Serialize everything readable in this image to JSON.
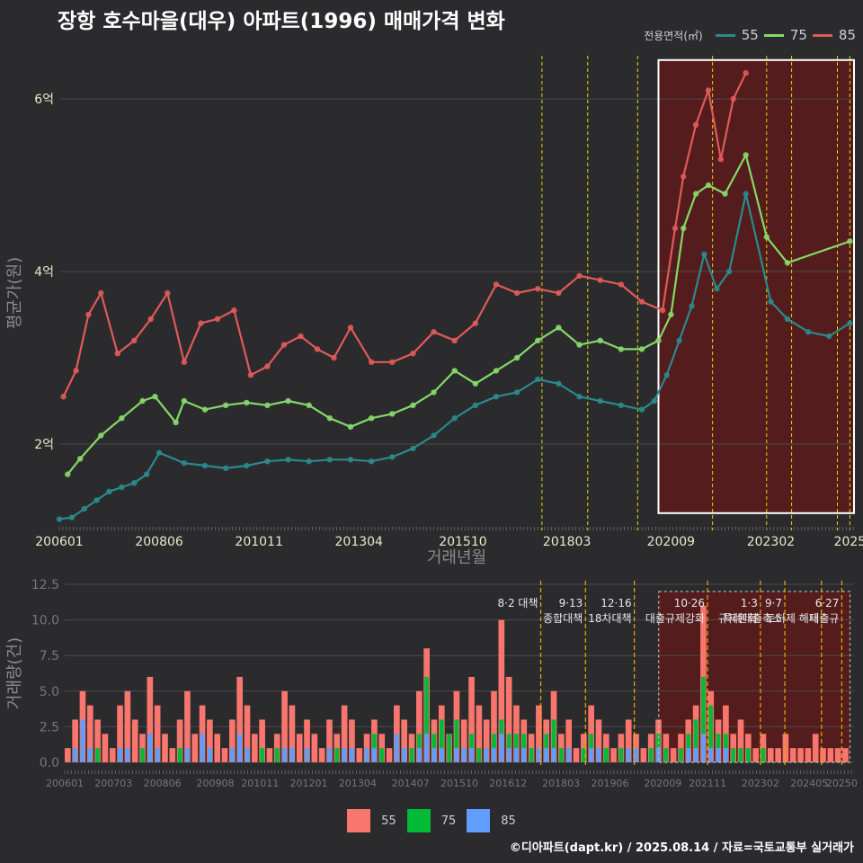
{
  "colors": {
    "background": "#2b2b2d",
    "grid": "#4a4a4c",
    "tick_text": "#e8e8c8",
    "axis_label": "#8c8c8c",
    "s55": "#2a8a8e",
    "s75": "#86d86a",
    "s85": "#e05a5a",
    "bar55": "#f8766d",
    "bar75": "#00ba38",
    "bar85": "#619cff",
    "highlight_fill": "#5c1a1a",
    "policy_line": "#e8d500",
    "policy_line_bottom": "#f0a800"
  },
  "chart_data": [
    {
      "type": "line",
      "title": "장항 호수마을(대우) 아파트(1996) 매매가격 변화",
      "xlabel": "거래년월",
      "ylabel": "평균가(원)",
      "xlim": [
        2006.0,
        2025.1
      ],
      "ylim": [
        1.0,
        6.5
      ],
      "y_ticks": [
        2,
        4,
        6
      ],
      "y_tick_labels": [
        "2억",
        "4억",
        "6억"
      ],
      "x_ticks": [
        2006.0,
        2008.4,
        2010.8,
        2013.2,
        2015.7,
        2018.2,
        2020.7,
        2023.1,
        2025.0
      ],
      "x_tick_labels": [
        "200601",
        "200806",
        "201011",
        "201304",
        "201510",
        "201803",
        "202009",
        "202302",
        "2025"
      ],
      "legend_title": "전용면적(㎡)",
      "highlight_range": {
        "x0": 2020.4,
        "x1": 2025.1,
        "y0": 1.2,
        "y1": 6.45
      },
      "policy_lines": [
        2017.6,
        2018.7,
        2019.9,
        2021.7,
        2023.0,
        2023.6,
        2024.7,
        2025.0
      ],
      "series": [
        {
          "name": "55",
          "x": [
            2006.0,
            2006.3,
            2006.6,
            2006.9,
            2007.2,
            2007.5,
            2007.8,
            2008.1,
            2008.4,
            2009.0,
            2009.5,
            2010.0,
            2010.5,
            2011.0,
            2011.5,
            2012.0,
            2012.5,
            2013.0,
            2013.5,
            2014.0,
            2014.5,
            2015.0,
            2015.5,
            2016.0,
            2016.5,
            2017.0,
            2017.5,
            2018.0,
            2018.5,
            2019.0,
            2019.5,
            2020.0,
            2020.3,
            2020.6,
            2020.9,
            2021.2,
            2021.5,
            2021.8,
            2022.1,
            2022.5,
            2023.1,
            2023.5,
            2024.0,
            2024.5,
            2025.0
          ],
          "values": [
            1.13,
            1.15,
            1.25,
            1.35,
            1.45,
            1.5,
            1.55,
            1.65,
            1.9,
            1.78,
            1.75,
            1.72,
            1.75,
            1.8,
            1.82,
            1.8,
            1.82,
            1.82,
            1.8,
            1.85,
            1.95,
            2.1,
            2.3,
            2.45,
            2.55,
            2.6,
            2.75,
            2.7,
            2.55,
            2.5,
            2.45,
            2.4,
            2.5,
            2.8,
            3.2,
            3.6,
            4.2,
            3.8,
            4.0,
            4.9,
            3.65,
            3.45,
            3.3,
            3.25,
            3.4
          ]
        },
        {
          "name": "75",
          "x": [
            2006.2,
            2006.5,
            2007.0,
            2007.5,
            2008.0,
            2008.3,
            2008.8,
            2009.0,
            2009.5,
            2010.0,
            2010.5,
            2011.0,
            2011.5,
            2012.0,
            2012.5,
            2013.0,
            2013.5,
            2014.0,
            2014.5,
            2015.0,
            2015.5,
            2016.0,
            2016.5,
            2017.0,
            2017.5,
            2018.0,
            2018.5,
            2019.0,
            2019.5,
            2020.0,
            2020.4,
            2020.7,
            2021.0,
            2021.3,
            2021.6,
            2022.0,
            2022.5,
            2023.0,
            2023.5,
            2025.0
          ],
          "values": [
            1.65,
            1.83,
            2.1,
            2.3,
            2.5,
            2.55,
            2.25,
            2.5,
            2.4,
            2.45,
            2.48,
            2.45,
            2.5,
            2.45,
            2.3,
            2.2,
            2.3,
            2.35,
            2.45,
            2.6,
            2.85,
            2.7,
            2.85,
            3.0,
            3.2,
            3.35,
            3.15,
            3.2,
            3.1,
            3.1,
            3.2,
            3.5,
            4.5,
            4.9,
            5.0,
            4.9,
            5.35,
            4.4,
            4.1,
            4.35
          ]
        },
        {
          "name": "85",
          "x": [
            2006.1,
            2006.4,
            2006.7,
            2007.0,
            2007.4,
            2007.8,
            2008.2,
            2008.6,
            2009.0,
            2009.4,
            2009.8,
            2010.2,
            2010.6,
            2011.0,
            2011.4,
            2011.8,
            2012.2,
            2012.6,
            2013.0,
            2013.5,
            2014.0,
            2014.5,
            2015.0,
            2015.5,
            2016.0,
            2016.5,
            2017.0,
            2017.5,
            2018.0,
            2018.5,
            2019.0,
            2019.5,
            2020.0,
            2020.5,
            2020.8,
            2021.0,
            2021.3,
            2021.6,
            2021.9,
            2022.2,
            2022.5
          ],
          "values": [
            2.55,
            2.85,
            3.5,
            3.75,
            3.05,
            3.2,
            3.45,
            3.75,
            2.95,
            3.4,
            3.45,
            3.55,
            2.8,
            2.9,
            3.15,
            3.25,
            3.1,
            3.0,
            3.35,
            2.95,
            2.95,
            3.05,
            3.3,
            3.2,
            3.4,
            3.85,
            3.75,
            3.8,
            3.75,
            3.95,
            3.9,
            3.85,
            3.65,
            3.55,
            4.5,
            5.1,
            5.7,
            6.1,
            5.3,
            6.0,
            6.3
          ]
        }
      ]
    },
    {
      "type": "bar",
      "xlabel": "",
      "ylabel": "거래량(건)",
      "ylim": [
        0,
        12.5
      ],
      "y_ticks": [
        0,
        2.5,
        5,
        7.5,
        10,
        12.5
      ],
      "y_tick_labels": [
        "0.0",
        "2.5",
        "5.0",
        "7.5",
        "10.0",
        "12.5"
      ],
      "x_ticks": [
        2006.0,
        2007.2,
        2008.4,
        2009.7,
        2010.8,
        2012.0,
        2013.2,
        2014.5,
        2015.7,
        2016.9,
        2018.2,
        2019.4,
        2020.7,
        2021.8,
        2023.1,
        2024.3,
        2025.1
      ],
      "x_tick_labels": [
        "200601",
        "200703",
        "200806",
        "200908",
        "201011",
        "201201",
        "201304",
        "201407",
        "201510",
        "201612",
        "201803",
        "201906",
        "202009",
        "202111",
        "202302",
        "202405",
        "20250"
      ],
      "annotations": [
        {
          "x": 2017.6,
          "line1": "8·2 대책",
          "line2": ""
        },
        {
          "x": 2018.7,
          "line1": "9·13",
          "line2": "종합대책"
        },
        {
          "x": 2019.9,
          "line1": "12·16",
          "line2": "18차대책"
        },
        {
          "x": 2021.7,
          "line1": "10·26",
          "line2": "대출규제강화"
        },
        {
          "x": 2023.0,
          "line1": "1·3",
          "line2": "규제완화"
        },
        {
          "x": 2023.6,
          "line1": "9·7",
          "line2": "특례대출축소"
        },
        {
          "x": 2024.5,
          "line1": "",
          "line2": "토허제 해제"
        },
        {
          "x": 2025.0,
          "line1": "6·27",
          "line2": "대출규"
        }
      ],
      "legend": [
        "55",
        "75",
        "85"
      ],
      "series": [
        {
          "name": "55",
          "values": [
            1,
            3,
            5,
            4,
            3,
            2,
            1,
            4,
            5,
            3,
            2,
            6,
            4,
            2,
            1,
            3,
            5,
            2,
            4,
            3,
            2,
            1,
            3,
            6,
            4,
            2,
            3,
            1,
            2,
            5,
            4,
            2,
            3,
            2,
            1,
            3,
            2,
            4,
            3,
            1,
            2,
            3,
            2,
            1,
            4,
            3,
            2,
            5,
            8,
            3,
            4,
            2,
            5,
            3,
            6,
            4,
            3,
            5,
            10,
            6,
            4,
            3,
            2,
            4,
            3,
            5,
            2,
            3,
            1,
            2,
            4,
            3,
            2,
            1,
            2,
            3,
            2,
            1,
            2,
            3,
            2,
            1,
            2,
            3,
            4,
            11,
            5,
            3,
            4,
            2,
            3,
            2,
            1,
            2,
            1,
            1,
            2,
            1,
            1,
            1,
            2,
            1,
            1,
            1,
            1
          ]
        },
        {
          "name": "75",
          "values": [
            0,
            1,
            1,
            0,
            1,
            0,
            0,
            1,
            1,
            0,
            1,
            2,
            1,
            0,
            0,
            1,
            1,
            0,
            1,
            1,
            0,
            0,
            1,
            1,
            1,
            0,
            1,
            0,
            1,
            1,
            1,
            0,
            1,
            0,
            0,
            1,
            1,
            1,
            1,
            0,
            1,
            2,
            1,
            0,
            2,
            1,
            1,
            2,
            6,
            2,
            3,
            2,
            3,
            1,
            2,
            1,
            1,
            2,
            3,
            2,
            2,
            2,
            1,
            1,
            2,
            3,
            1,
            1,
            0,
            1,
            2,
            1,
            1,
            0,
            1,
            1,
            1,
            0,
            1,
            2,
            1,
            0,
            1,
            2,
            3,
            6,
            4,
            2,
            2,
            1,
            1,
            1,
            0,
            1,
            0,
            0,
            0,
            0,
            0,
            0,
            0,
            0,
            0,
            0,
            0
          ]
        },
        {
          "name": "85",
          "values": [
            0,
            1,
            3,
            1,
            0,
            0,
            0,
            1,
            1,
            0,
            0,
            2,
            1,
            0,
            0,
            0,
            1,
            0,
            2,
            1,
            0,
            0,
            1,
            2,
            1,
            0,
            0,
            0,
            0,
            1,
            1,
            0,
            1,
            0,
            0,
            1,
            0,
            1,
            1,
            0,
            1,
            1,
            0,
            0,
            2,
            1,
            0,
            1,
            2,
            1,
            1,
            0,
            1,
            1,
            1,
            0,
            1,
            1,
            2,
            1,
            1,
            1,
            0,
            1,
            1,
            1,
            0,
            1,
            0,
            0,
            1,
            1,
            0,
            0,
            0,
            1,
            1,
            0,
            0,
            1,
            0,
            0,
            0,
            1,
            1,
            2,
            1,
            1,
            1,
            0,
            0,
            0,
            0,
            0,
            0,
            0,
            0,
            0,
            0,
            0,
            0,
            0,
            0,
            0,
            0
          ]
        }
      ]
    }
  ],
  "footer": {
    "credit": "©디아파트(dapt.kr) / 2025.08.14 / 자료=국토교통부 실거래가"
  }
}
